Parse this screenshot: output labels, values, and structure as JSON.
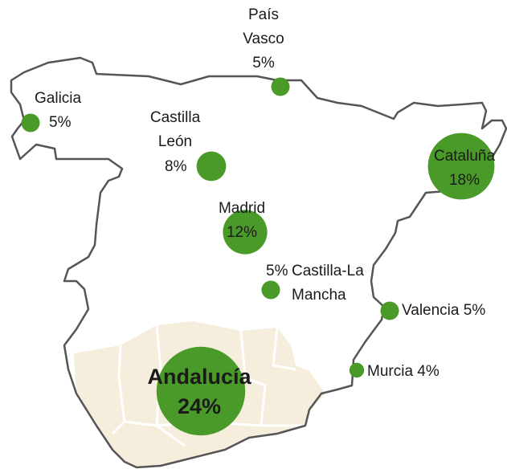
{
  "regions": [
    {
      "name": "País Vasco",
      "value": 5,
      "value_label": "5%"
    },
    {
      "name": "Galicia",
      "value": 5,
      "value_label": "5%"
    },
    {
      "name": "Castilla León",
      "value": 8,
      "value_label": "8%"
    },
    {
      "name": "Madrid",
      "value": 12,
      "value_label": "12%"
    },
    {
      "name": "Cataluña",
      "value": 18,
      "value_label": "18%"
    },
    {
      "name": "Castilla-La Mancha",
      "value": 5,
      "value_label": "5%"
    },
    {
      "name": "Valencia",
      "value": 5,
      "value_label": "5%"
    },
    {
      "name": "Murcia",
      "value": 4,
      "value_label": "4%"
    },
    {
      "name": "Andalucía",
      "value": 24,
      "value_label": "24%"
    }
  ],
  "color": "#4a9a2a"
}
